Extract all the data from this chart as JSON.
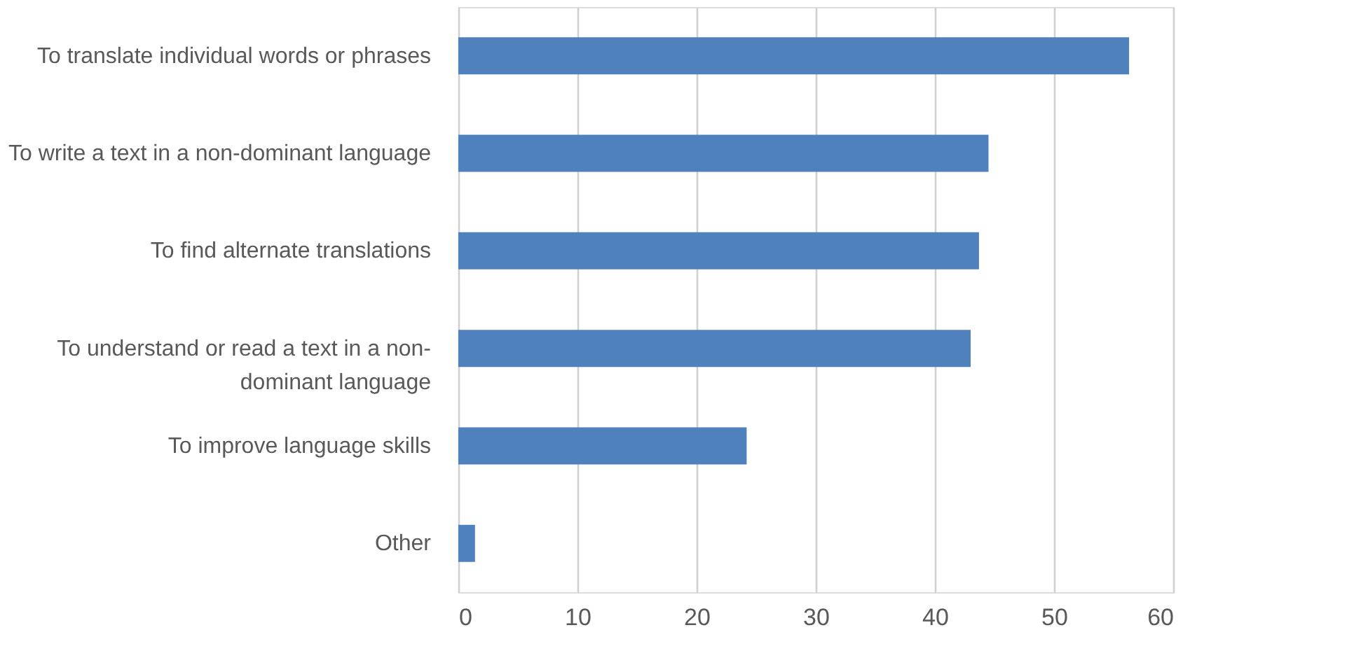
{
  "chart_data": {
    "type": "bar",
    "orientation": "horizontal",
    "categories": [
      "To translate individual words or phrases",
      "To write a text in a non-dominant language",
      "To find alternate translations",
      "To understand or read a text in a non-dominant language",
      "To improve language skills",
      "Other"
    ],
    "values": [
      56.3,
      44.5,
      43.7,
      43.0,
      24.2,
      1.4
    ],
    "color": "#4f81bd",
    "xlim": [
      0,
      60
    ],
    "xticks": [
      0,
      10,
      20,
      30,
      40,
      50,
      60
    ],
    "grid": "x"
  }
}
